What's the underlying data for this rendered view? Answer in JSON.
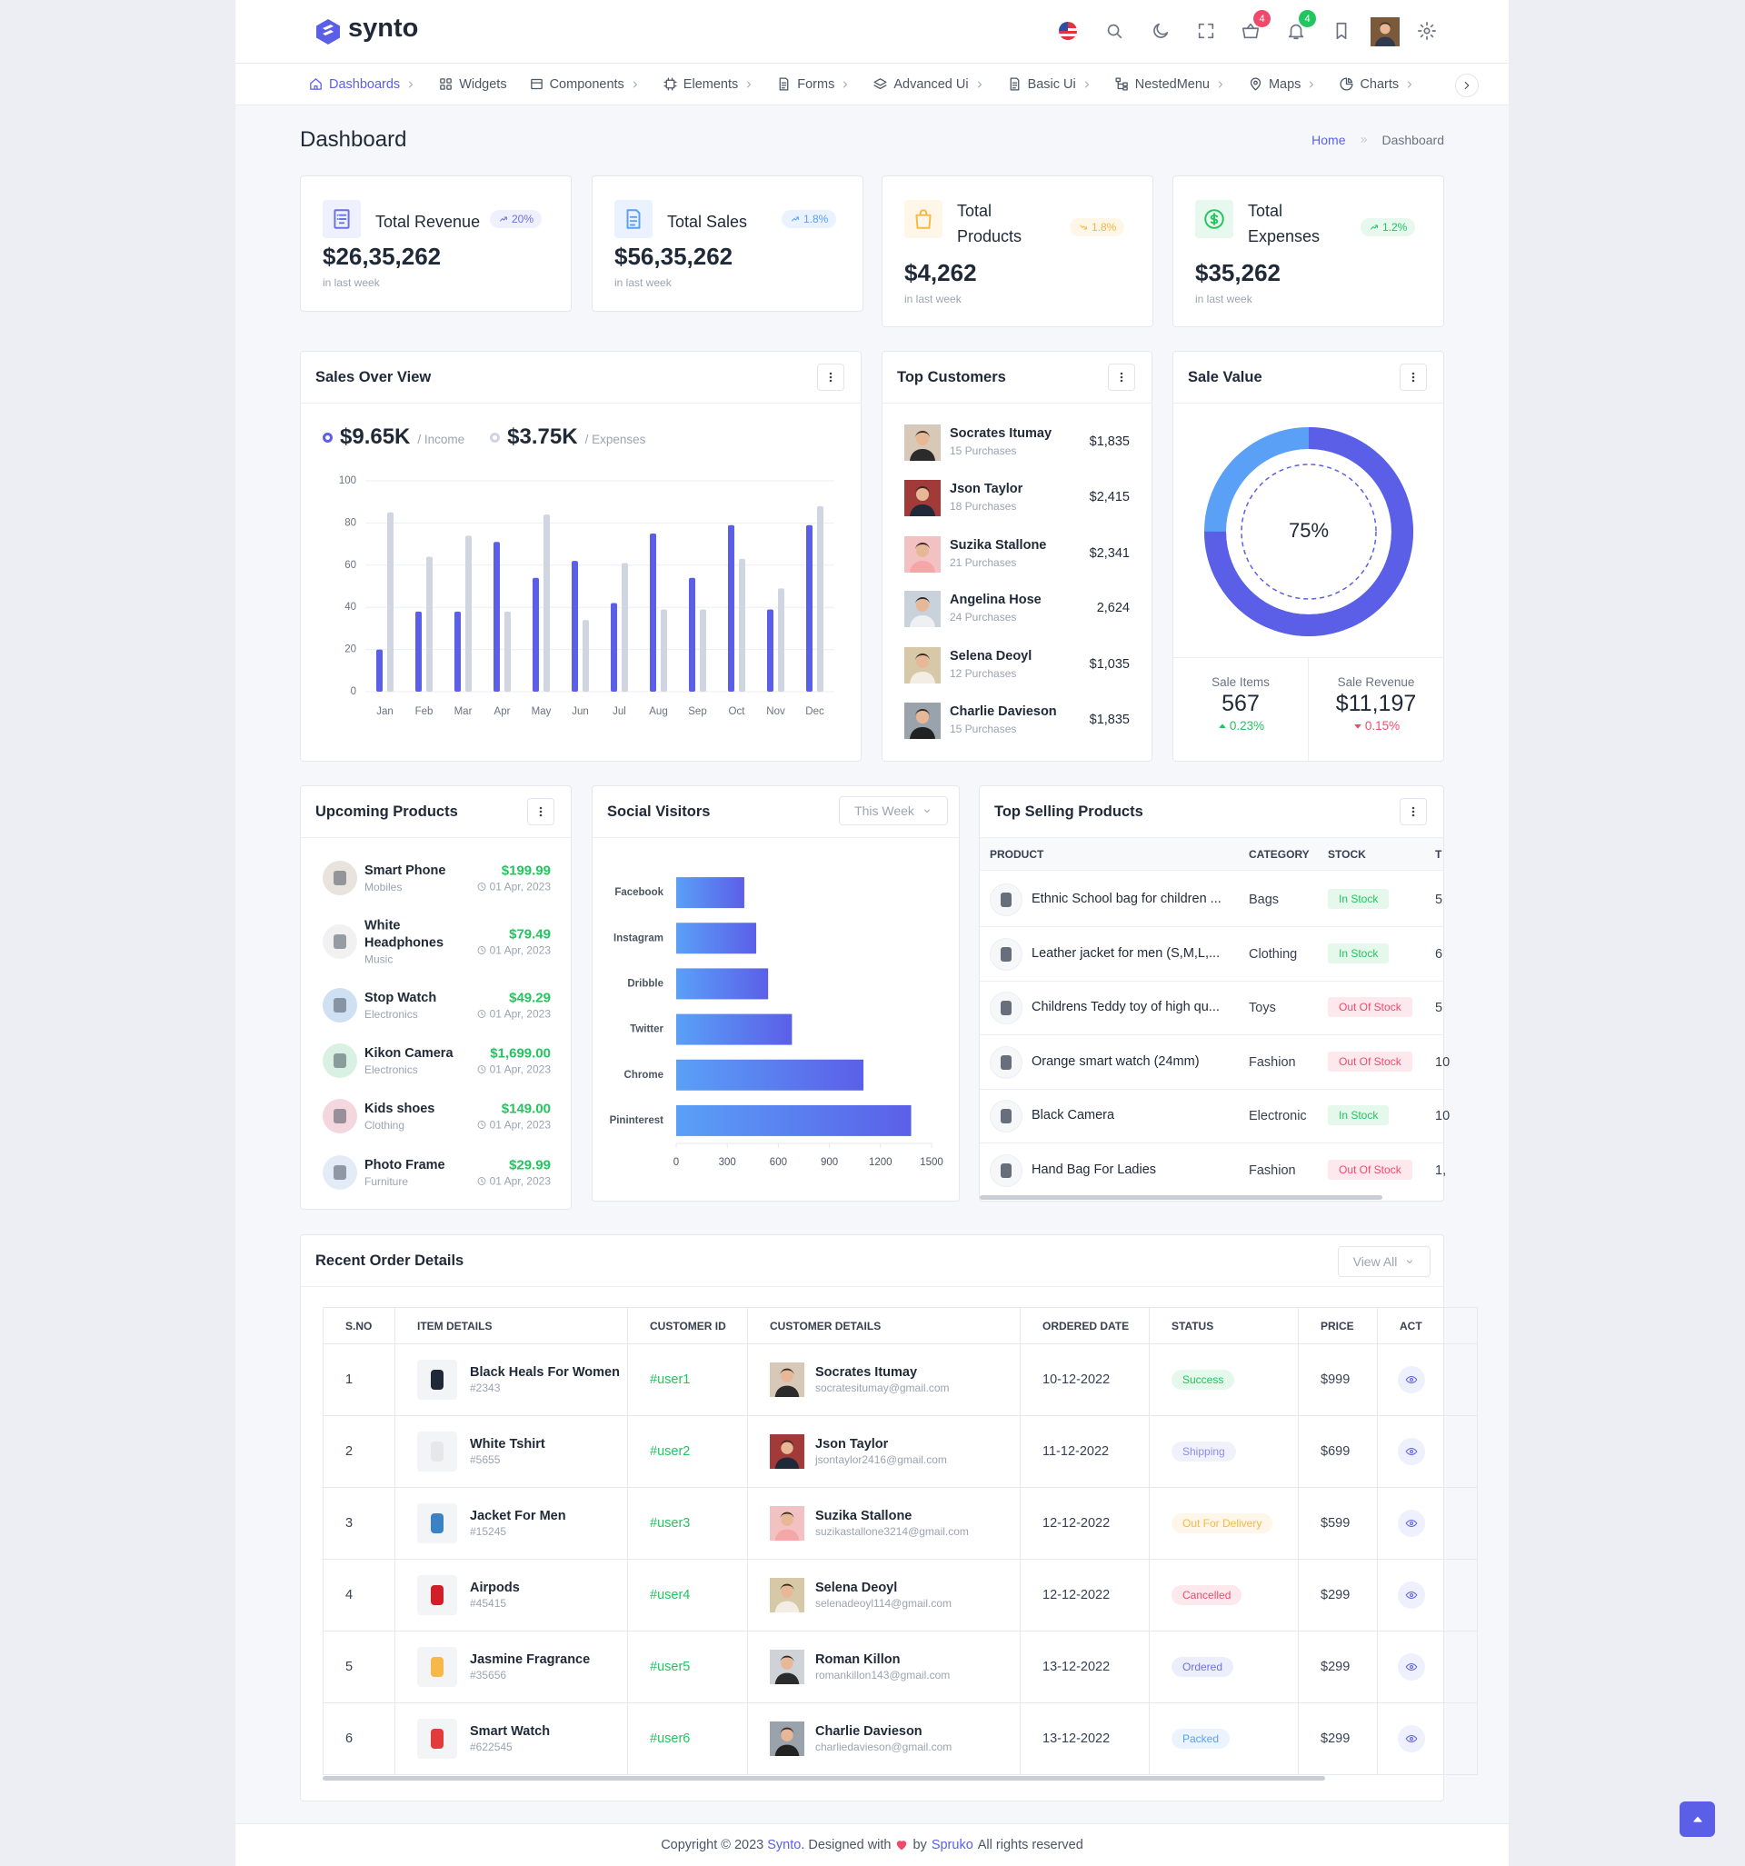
{
  "header": {
    "logo": "synto",
    "cart_badge": "4",
    "notification_badge": "4"
  },
  "nav": [
    "Dashboards",
    "Widgets",
    "Components",
    "Elements",
    "Forms",
    "Advanced Ui",
    "Basic Ui",
    "NestedMenu",
    "Maps",
    "Charts"
  ],
  "page": {
    "title": "Dashboard",
    "breadcrumb": [
      "Home",
      "Dashboard"
    ]
  },
  "stats": [
    {
      "title": "Total Revenue",
      "change": "20%",
      "value": "$26,35,262",
      "note": "in last week"
    },
    {
      "title": "Total Sales",
      "change": "1.8%",
      "value": "$56,35,262",
      "note": "in last week"
    },
    {
      "title": "Total Products",
      "change": "1.8%",
      "value": "$4,262",
      "note": "in last week"
    },
    {
      "title": "Total Expenses",
      "change": "1.2%",
      "value": "$35,262",
      "note": "in last week"
    }
  ],
  "chart_data": [
    {
      "type": "bar",
      "title": "Sales Over View",
      "categories": [
        "Jan",
        "Feb",
        "Mar",
        "Apr",
        "May",
        "Jun",
        "Jul",
        "Aug",
        "Sep",
        "Oct",
        "Nov",
        "Dec"
      ],
      "series": [
        {
          "name": "/ Income",
          "total": "$9.65K",
          "color": "#5b5fe8",
          "values": [
            20,
            38,
            38,
            71,
            54,
            62,
            42,
            75,
            54,
            79,
            39,
            79
          ]
        },
        {
          "name": "/ Expenses",
          "total": "$3.75K",
          "color": "#cfd5e1",
          "values": [
            85,
            64,
            74,
            38,
            84,
            34,
            61,
            39,
            39,
            63,
            49,
            88
          ]
        }
      ],
      "ylim": [
        0,
        100
      ],
      "yticks": [
        0,
        20,
        40,
        60,
        80,
        100
      ],
      "grid": true
    },
    {
      "type": "barh",
      "title": "Social Visitors",
      "categories": [
        "Facebook",
        "Instagram",
        "Dribble",
        "Twitter",
        "Chrome",
        "Pininterest"
      ],
      "values": [
        400,
        470,
        540,
        680,
        1100,
        1380
      ],
      "color": "#5b5fe8",
      "xlim": [
        0,
        1500
      ],
      "xticks": [
        0,
        300,
        600,
        900,
        1200,
        1500
      ]
    },
    {
      "type": "donut",
      "title": "Sale Value",
      "values": [
        75
      ],
      "value_labels": [
        "75%"
      ],
      "color": "#5b5fe8"
    }
  ],
  "social_visitors": {
    "filter": "This Week"
  },
  "top_customers": {
    "title": "Top Customers",
    "rows": [
      {
        "name": "Socrates Itumay",
        "purchases": "15 Purchases",
        "amount": "$1,835"
      },
      {
        "name": "Json Taylor",
        "purchases": "18 Purchases",
        "amount": "$2,415"
      },
      {
        "name": "Suzika Stallone",
        "purchases": "21 Purchases",
        "amount": "$2,341"
      },
      {
        "name": "Angelina Hose",
        "purchases": "24 Purchases",
        "amount": "2,624"
      },
      {
        "name": "Selena Deoyl",
        "purchases": "12 Purchases",
        "amount": "$1,035"
      },
      {
        "name": "Charlie Davieson",
        "purchases": "15 Purchases",
        "amount": "$1,835"
      }
    ]
  },
  "sale_value": {
    "items_label": "Sale Items",
    "items_value": "567",
    "items_change": "0.23%",
    "revenue_label": "Sale Revenue",
    "revenue_value": "$11,197",
    "revenue_change": "0.15%"
  },
  "upcoming_products": {
    "title": "Upcoming Products",
    "rows": [
      {
        "name": "Smart Phone",
        "category": "Mobiles",
        "price": "$199.99",
        "date": "01 Apr, 2023"
      },
      {
        "name": "White Headphones",
        "category": "Music",
        "price": "$79.49",
        "date": "01 Apr, 2023"
      },
      {
        "name": "Stop Watch",
        "category": "Electronics",
        "price": "$49.29",
        "date": "01 Apr, 2023"
      },
      {
        "name": "Kikon Camera",
        "category": "Electronics",
        "price": "$1,699.00",
        "date": "01 Apr, 2023"
      },
      {
        "name": "Kids shoes",
        "category": "Clothing",
        "price": "$149.00",
        "date": "01 Apr, 2023"
      },
      {
        "name": "Photo Frame",
        "category": "Furniture",
        "price": "$29.99",
        "date": "01 Apr, 2023"
      }
    ]
  },
  "top_selling": {
    "title": "Top Selling Products",
    "headers": [
      "PRODUCT",
      "CATEGORY",
      "STOCK",
      "T"
    ],
    "rows": [
      {
        "product": "Ethnic School bag for children ...",
        "category": "Bags",
        "stock": "In Stock",
        "color": "#22c55e",
        "extra": "5"
      },
      {
        "product": "Leather jacket for men (S,M,L,...",
        "category": "Clothing",
        "stock": "In Stock",
        "color": "#22c55e",
        "extra": "6"
      },
      {
        "product": "Childrens Teddy toy of high qu...",
        "category": "Toys",
        "stock": "Out Of Stock",
        "color": "#ef4a6b",
        "extra": "5"
      },
      {
        "product": "Orange smart watch (24mm)",
        "category": "Fashion",
        "stock": "Out Of Stock",
        "color": "#ef4a6b",
        "extra": "10"
      },
      {
        "product": "Black Camera",
        "category": "Electronic",
        "stock": "In Stock",
        "color": "#22c55e",
        "extra": "10"
      },
      {
        "product": "Hand Bag For Ladies",
        "category": "Fashion",
        "stock": "Out Of Stock",
        "color": "#ef4a6b",
        "extra": "1,"
      }
    ]
  },
  "recent_orders": {
    "title": "Recent Order Details",
    "button": "View All",
    "headers": [
      "S.NO",
      "ITEM DETAILS",
      "CUSTOMER ID",
      "CUSTOMER DETAILS",
      "ORDERED DATE",
      "STATUS",
      "PRICE",
      "ACT"
    ],
    "rows": [
      {
        "sno": "1",
        "item": "Black Heals For Women",
        "item_id": "#2343",
        "customer_id": "#user1",
        "customer": "Socrates Itumay",
        "email": "socratesitumay@gmail.com",
        "date": "10-12-2022",
        "status": "Success",
        "color": "#22c55e",
        "price": "$999"
      },
      {
        "sno": "2",
        "item": "White Tshirt",
        "item_id": "#5655",
        "customer_id": "#user2",
        "customer": "Json Taylor",
        "email": "jsontaylor2416@gmail.com",
        "date": "11-12-2022",
        "status": "Shipping",
        "color": "#8b8fe8",
        "price": "$699"
      },
      {
        "sno": "3",
        "item": "Jacket For Men",
        "item_id": "#15245",
        "customer_id": "#user3",
        "customer": "Suzika Stallone",
        "email": "suzikastallone3214@gmail.com",
        "date": "12-12-2022",
        "status": "Out For Delivery",
        "color": "#f5b849",
        "price": "$599"
      },
      {
        "sno": "4",
        "item": "Airpods",
        "item_id": "#45415",
        "customer_id": "#user4",
        "customer": "Selena Deoyl",
        "email": "selenadeoyl114@gmail.com",
        "date": "12-12-2022",
        "status": "Cancelled",
        "color": "#ef4a6b",
        "price": "$299"
      },
      {
        "sno": "5",
        "item": "Jasmine Fragrance",
        "item_id": "#35656",
        "customer_id": "#user5",
        "customer": "Roman Killon",
        "email": "romankillon143@gmail.com",
        "date": "13-12-2022",
        "status": "Ordered",
        "color": "#6c70e0",
        "price": "$299"
      },
      {
        "sno": "6",
        "item": "Smart Watch",
        "item_id": "#622545",
        "customer_id": "#user6",
        "customer": "Charlie Davieson",
        "email": "charliedavieson@gmail.com",
        "date": "13-12-2022",
        "status": "Packed",
        "color": "#5aa0f7",
        "price": "$299"
      }
    ]
  },
  "footer": {
    "prefix": "Copyright © 2023",
    "brand": "Synto",
    "designed": ". Designed with",
    "by": "by",
    "company": "Spruko",
    "suffix": "All rights reserved"
  }
}
